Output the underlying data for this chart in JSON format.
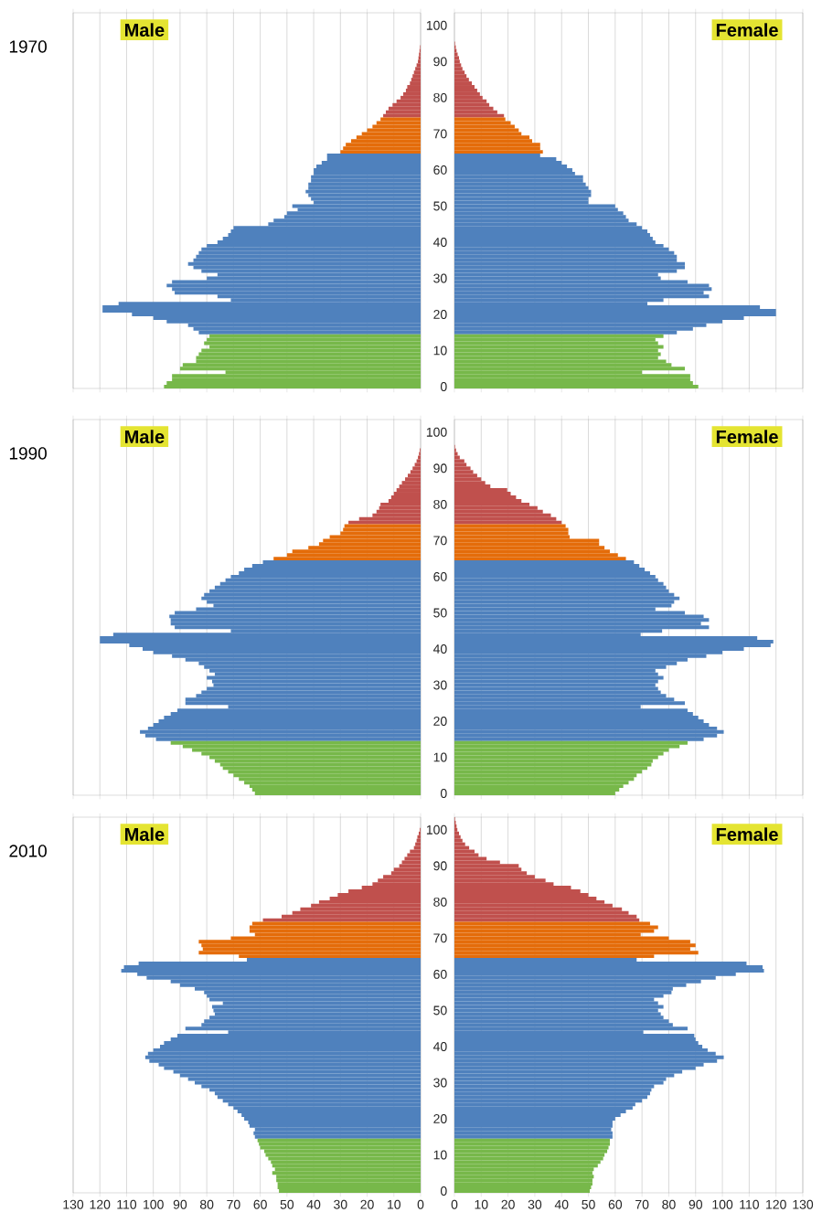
{
  "chart_data": [
    {
      "type": "bar",
      "orientation": "horizontal",
      "title": "Male",
      "ylabel": "1970",
      "grid": "x",
      "tick_labels": false,
      "xlim": [
        130,
        0
      ],
      "xticks": [
        130,
        120,
        110,
        100,
        90,
        80,
        70,
        60,
        50,
        40,
        30,
        20,
        10,
        0
      ],
      "categories": [
        null,
        null,
        null,
        "100",
        null,
        null,
        null,
        null,
        null,
        null,
        null,
        null,
        null,
        "90",
        null,
        null,
        null,
        null,
        null,
        null,
        null,
        null,
        null,
        "80",
        null,
        null,
        null,
        null,
        null,
        null,
        null,
        null,
        null,
        "70",
        null,
        null,
        null,
        null,
        null,
        null,
        null,
        null,
        null,
        "60",
        null,
        null,
        null,
        null,
        null,
        null,
        null,
        null,
        null,
        "50",
        null,
        null,
        null,
        null,
        null,
        null,
        null,
        null,
        null,
        "40",
        null,
        null,
        null,
        null,
        null,
        null,
        null,
        null,
        null,
        "30",
        null,
        null,
        null,
        null,
        null,
        null,
        null,
        null,
        null,
        "20",
        null,
        null,
        null,
        null,
        null,
        null,
        null,
        null,
        null,
        "10",
        null,
        null,
        null,
        null,
        null,
        null,
        null,
        null,
        null,
        "0"
      ],
      "values": [
        0,
        0,
        0,
        0,
        0,
        0,
        0,
        0,
        0,
        0.2,
        0.4,
        0.6,
        0.8,
        1,
        1.5,
        2,
        2.5,
        3,
        3.5,
        4,
        5,
        5.5,
        6.5,
        7.5,
        9,
        10.5,
        12,
        13,
        14,
        15,
        16.5,
        18,
        20,
        22,
        24,
        26,
        28,
        29,
        30,
        35,
        35,
        37,
        39,
        40,
        40,
        41,
        41,
        42,
        42,
        43,
        42,
        41,
        40,
        48,
        46,
        50,
        51,
        55,
        57,
        70,
        71,
        72,
        74,
        76,
        80,
        82,
        83,
        84,
        85,
        87,
        85,
        82,
        76,
        80,
        93,
        95,
        93,
        92,
        76,
        71,
        113,
        119,
        119,
        108,
        100,
        95,
        87,
        85,
        83,
        79,
        80,
        81,
        79,
        82,
        83,
        84,
        84,
        89,
        90,
        73,
        93,
        93,
        95,
        96
      ],
      "colors": [
        "#c0504d",
        "#c0504d",
        "#c0504d",
        "#c0504d",
        "#c0504d",
        "#c0504d",
        "#c0504d",
        "#c0504d",
        "#c0504d",
        "#c0504d",
        "#c0504d",
        "#c0504d",
        "#c0504d",
        "#c0504d",
        "#c0504d",
        "#c0504d",
        "#c0504d",
        "#c0504d",
        "#c0504d",
        "#c0504d",
        "#c0504d",
        "#c0504d",
        "#c0504d",
        "#c0504d",
        "#c0504d",
        "#c0504d",
        "#c0504d",
        "#c0504d",
        "#c0504d",
        "#e46c0a",
        "#e46c0a",
        "#e46c0a",
        "#e46c0a",
        "#e46c0a",
        "#e46c0a",
        "#e46c0a",
        "#e46c0a",
        "#e46c0a",
        "#e46c0a",
        "#4f81bd",
        "#4f81bd",
        "#4f81bd",
        "#4f81bd",
        "#4f81bd",
        "#4f81bd",
        "#4f81bd",
        "#4f81bd",
        "#4f81bd",
        "#4f81bd",
        "#4f81bd",
        "#4f81bd",
        "#4f81bd",
        "#4f81bd",
        "#4f81bd",
        "#4f81bd",
        "#4f81bd",
        "#4f81bd",
        "#4f81bd",
        "#4f81bd",
        "#4f81bd",
        "#4f81bd",
        "#4f81bd",
        "#4f81bd",
        "#4f81bd",
        "#4f81bd",
        "#4f81bd",
        "#4f81bd",
        "#4f81bd",
        "#4f81bd",
        "#4f81bd",
        "#4f81bd",
        "#4f81bd",
        "#4f81bd",
        "#4f81bd",
        "#4f81bd",
        "#4f81bd",
        "#4f81bd",
        "#4f81bd",
        "#4f81bd",
        "#4f81bd",
        "#4f81bd",
        "#4f81bd",
        "#4f81bd",
        "#4f81bd",
        "#4f81bd",
        "#4f81bd",
        "#4f81bd",
        "#4f81bd",
        "#4f81bd",
        "#77b84a",
        "#77b84a",
        "#77b84a",
        "#77b84a",
        "#77b84a",
        "#77b84a",
        "#77b84a",
        "#77b84a",
        "#77b84a",
        "#77b84a",
        "#77b84a",
        "#77b84a",
        "#77b84a",
        "#77b84a",
        "#77b84a"
      ]
    },
    {
      "type": "bar",
      "orientation": "horizontal",
      "title": "Female",
      "grid": "x",
      "tick_labels": "y",
      "xlim": [
        0,
        130
      ],
      "xticks": [
        0,
        10,
        20,
        30,
        40,
        50,
        60,
        70,
        80,
        90,
        100,
        110,
        120,
        130
      ],
      "categories": [
        null,
        null,
        null,
        "100",
        null,
        null,
        null,
        null,
        null,
        null,
        null,
        null,
        null,
        "90",
        null,
        null,
        null,
        null,
        null,
        null,
        null,
        null,
        null,
        "80",
        null,
        null,
        null,
        null,
        null,
        null,
        null,
        null,
        null,
        "70",
        null,
        null,
        null,
        null,
        null,
        null,
        null,
        null,
        null,
        "60",
        null,
        null,
        null,
        null,
        null,
        null,
        null,
        null,
        null,
        "50",
        null,
        null,
        null,
        null,
        null,
        null,
        null,
        null,
        null,
        "40",
        null,
        null,
        null,
        null,
        null,
        null,
        null,
        null,
        null,
        "30",
        null,
        null,
        null,
        null,
        null,
        null,
        null,
        null,
        null,
        "20",
        null,
        null,
        null,
        null,
        null,
        null,
        null,
        null,
        null,
        "10",
        null,
        null,
        null,
        null,
        null,
        null,
        null,
        null,
        null,
        "0"
      ],
      "values": [
        0,
        0,
        0,
        0,
        0,
        0,
        0,
        0,
        0.2,
        0.5,
        0.8,
        1.2,
        1.7,
        2,
        2.5,
        3,
        3.8,
        4.5,
        5.4,
        6.5,
        7.5,
        8.5,
        9.5,
        10.5,
        12,
        13,
        14.5,
        16,
        18.5,
        19,
        21,
        22.5,
        24,
        25,
        28,
        29,
        32,
        32,
        33,
        32,
        38,
        40,
        42,
        44,
        45,
        48,
        48,
        49,
        50,
        51,
        51,
        50,
        50,
        60,
        61,
        63,
        64,
        65,
        68,
        70,
        72,
        73,
        74,
        75,
        78,
        80,
        82,
        83,
        83,
        86,
        86,
        83,
        76,
        77,
        87,
        95,
        96,
        93,
        95,
        78,
        72,
        114,
        120,
        120,
        108,
        100,
        94,
        89,
        83,
        78,
        75,
        76,
        78,
        76,
        77,
        76,
        79,
        81,
        86,
        70,
        88,
        88,
        89,
        91
      ],
      "colors": [
        "#c0504d",
        "#c0504d",
        "#c0504d",
        "#c0504d",
        "#c0504d",
        "#c0504d",
        "#c0504d",
        "#c0504d",
        "#c0504d",
        "#c0504d",
        "#c0504d",
        "#c0504d",
        "#c0504d",
        "#c0504d",
        "#c0504d",
        "#c0504d",
        "#c0504d",
        "#c0504d",
        "#c0504d",
        "#c0504d",
        "#c0504d",
        "#c0504d",
        "#c0504d",
        "#c0504d",
        "#c0504d",
        "#c0504d",
        "#c0504d",
        "#c0504d",
        "#c0504d",
        "#e46c0a",
        "#e46c0a",
        "#e46c0a",
        "#e46c0a",
        "#e46c0a",
        "#e46c0a",
        "#e46c0a",
        "#e46c0a",
        "#e46c0a",
        "#e46c0a",
        "#4f81bd",
        "#4f81bd",
        "#4f81bd",
        "#4f81bd",
        "#4f81bd",
        "#4f81bd",
        "#4f81bd",
        "#4f81bd",
        "#4f81bd",
        "#4f81bd",
        "#4f81bd",
        "#4f81bd",
        "#4f81bd",
        "#4f81bd",
        "#4f81bd",
        "#4f81bd",
        "#4f81bd",
        "#4f81bd",
        "#4f81bd",
        "#4f81bd",
        "#4f81bd",
        "#4f81bd",
        "#4f81bd",
        "#4f81bd",
        "#4f81bd",
        "#4f81bd",
        "#4f81bd",
        "#4f81bd",
        "#4f81bd",
        "#4f81bd",
        "#4f81bd",
        "#4f81bd",
        "#4f81bd",
        "#4f81bd",
        "#4f81bd",
        "#4f81bd",
        "#4f81bd",
        "#4f81bd",
        "#4f81bd",
        "#4f81bd",
        "#4f81bd",
        "#4f81bd",
        "#4f81bd",
        "#4f81bd",
        "#4f81bd",
        "#4f81bd",
        "#4f81bd",
        "#4f81bd",
        "#4f81bd",
        "#4f81bd",
        "#77b84a",
        "#77b84a",
        "#77b84a",
        "#77b84a",
        "#77b84a",
        "#77b84a",
        "#77b84a",
        "#77b84a",
        "#77b84a",
        "#77b84a",
        "#77b84a",
        "#77b84a",
        "#77b84a",
        "#77b84a",
        "#77b84a"
      ]
    },
    {
      "type": "bar",
      "orientation": "horizontal",
      "title": "Male",
      "ylabel": "1990",
      "grid": "x",
      "tick_labels": false,
      "xlim": [
        130,
        0
      ],
      "xticks": [
        130,
        120,
        110,
        100,
        90,
        80,
        70,
        60,
        50,
        40,
        30,
        20,
        10,
        0
      ],
      "categories": [
        null,
        null,
        null,
        "100",
        null,
        null,
        null,
        null,
        null,
        null,
        null,
        null,
        null,
        "90",
        null,
        null,
        null,
        null,
        null,
        null,
        null,
        null,
        null,
        "80",
        null,
        null,
        null,
        null,
        null,
        null,
        null,
        null,
        null,
        "70",
        null,
        null,
        null,
        null,
        null,
        null,
        null,
        null,
        null,
        "60",
        null,
        null,
        null,
        null,
        null,
        null,
        null,
        null,
        null,
        "50",
        null,
        null,
        null,
        null,
        null,
        null,
        null,
        null,
        null,
        "40",
        null,
        null,
        null,
        null,
        null,
        null,
        null,
        null,
        null,
        "30",
        null,
        null,
        null,
        null,
        null,
        null,
        null,
        null,
        null,
        "20",
        null,
        null,
        null,
        null,
        null,
        null,
        null,
        null,
        null,
        "10",
        null,
        null,
        null,
        null,
        null,
        null,
        null,
        null,
        null,
        "0"
      ],
      "values": [
        0,
        0,
        0,
        0,
        0,
        0,
        0,
        0,
        0.3,
        0.6,
        1,
        1.5,
        2.2,
        3,
        3.8,
        4.8,
        5.8,
        7,
        8,
        9,
        10,
        11,
        12,
        15,
        15.5,
        16.5,
        18,
        23,
        27,
        28.5,
        29,
        30,
        34,
        36.5,
        38,
        42,
        48,
        50,
        55,
        59,
        63,
        66,
        68,
        71,
        73,
        75,
        77,
        79,
        81,
        82,
        80,
        77.5,
        84,
        92,
        94,
        93.5,
        93.5,
        92,
        71,
        115,
        120,
        120,
        109,
        104,
        100,
        93,
        88,
        83,
        81,
        79,
        77,
        80,
        78,
        77.5,
        80,
        82,
        84,
        88,
        88,
        72,
        91,
        93.5,
        96,
        98,
        100,
        102,
        105,
        103,
        99,
        93.5,
        89,
        85.5,
        82,
        79,
        77,
        75,
        74,
        72,
        70,
        68,
        66,
        64,
        63,
        62
      ],
      "colors": [
        "#c0504d",
        "#c0504d",
        "#c0504d",
        "#c0504d",
        "#c0504d",
        "#c0504d",
        "#c0504d",
        "#c0504d",
        "#c0504d",
        "#c0504d",
        "#c0504d",
        "#c0504d",
        "#c0504d",
        "#c0504d",
        "#c0504d",
        "#c0504d",
        "#c0504d",
        "#c0504d",
        "#c0504d",
        "#c0504d",
        "#c0504d",
        "#c0504d",
        "#c0504d",
        "#c0504d",
        "#c0504d",
        "#c0504d",
        "#c0504d",
        "#c0504d",
        "#c0504d",
        "#e46c0a",
        "#e46c0a",
        "#e46c0a",
        "#e46c0a",
        "#e46c0a",
        "#e46c0a",
        "#e46c0a",
        "#e46c0a",
        "#e46c0a",
        "#e46c0a",
        "#4f81bd",
        "#4f81bd",
        "#4f81bd",
        "#4f81bd",
        "#4f81bd",
        "#4f81bd",
        "#4f81bd",
        "#4f81bd",
        "#4f81bd",
        "#4f81bd",
        "#4f81bd",
        "#4f81bd",
        "#4f81bd",
        "#4f81bd",
        "#4f81bd",
        "#4f81bd",
        "#4f81bd",
        "#4f81bd",
        "#4f81bd",
        "#4f81bd",
        "#4f81bd",
        "#4f81bd",
        "#4f81bd",
        "#4f81bd",
        "#4f81bd",
        "#4f81bd",
        "#4f81bd",
        "#4f81bd",
        "#4f81bd",
        "#4f81bd",
        "#4f81bd",
        "#4f81bd",
        "#4f81bd",
        "#4f81bd",
        "#4f81bd",
        "#4f81bd",
        "#4f81bd",
        "#4f81bd",
        "#4f81bd",
        "#4f81bd",
        "#4f81bd",
        "#4f81bd",
        "#4f81bd",
        "#4f81bd",
        "#4f81bd",
        "#4f81bd",
        "#4f81bd",
        "#4f81bd",
        "#4f81bd",
        "#4f81bd",
        "#77b84a",
        "#77b84a",
        "#77b84a",
        "#77b84a",
        "#77b84a",
        "#77b84a",
        "#77b84a",
        "#77b84a",
        "#77b84a",
        "#77b84a",
        "#77b84a",
        "#77b84a",
        "#77b84a",
        "#77b84a",
        "#77b84a"
      ]
    },
    {
      "type": "bar",
      "orientation": "horizontal",
      "title": "Female",
      "grid": "x",
      "tick_labels": "y",
      "xlim": [
        0,
        130
      ],
      "xticks": [
        0,
        10,
        20,
        30,
        40,
        50,
        60,
        70,
        80,
        90,
        100,
        110,
        120,
        130
      ],
      "categories": [
        null,
        null,
        null,
        "100",
        null,
        null,
        null,
        null,
        null,
        null,
        null,
        null,
        null,
        "90",
        null,
        null,
        null,
        null,
        null,
        null,
        null,
        null,
        null,
        "80",
        null,
        null,
        null,
        null,
        null,
        null,
        null,
        null,
        null,
        "70",
        null,
        null,
        null,
        null,
        null,
        null,
        null,
        null,
        null,
        "60",
        null,
        null,
        null,
        null,
        null,
        null,
        null,
        null,
        null,
        "50",
        null,
        null,
        null,
        null,
        null,
        null,
        null,
        null,
        null,
        "40",
        null,
        null,
        null,
        null,
        null,
        null,
        null,
        null,
        null,
        "30",
        null,
        null,
        null,
        null,
        null,
        null,
        null,
        null,
        null,
        "20",
        null,
        null,
        null,
        null,
        null,
        null,
        null,
        null,
        null,
        "10",
        null,
        null,
        null,
        null,
        null,
        null,
        null,
        null,
        null,
        "0"
      ],
      "values": [
        0,
        0,
        0,
        0,
        0,
        0,
        0,
        0.2,
        0.6,
        1.2,
        2,
        3.7,
        4.5,
        6,
        7,
        8.5,
        10,
        11.5,
        13.4,
        19.7,
        21,
        23,
        25,
        28,
        31,
        33,
        36,
        38,
        40,
        41.5,
        42.5,
        42.5,
        43,
        54,
        54,
        56,
        58,
        61,
        64,
        67,
        69,
        71,
        73,
        75,
        76,
        78,
        79,
        80,
        82,
        84,
        82,
        81,
        75,
        86,
        93,
        95,
        92,
        95,
        77.5,
        69.5,
        113,
        119,
        118,
        108,
        100,
        94,
        87,
        83,
        79,
        75,
        76,
        78,
        76,
        75,
        76,
        77,
        79,
        82,
        86,
        69.5,
        87,
        89,
        91,
        93,
        95,
        98,
        100.5,
        98,
        93,
        87,
        84,
        80,
        78,
        76,
        74,
        73.5,
        72,
        70,
        68,
        67,
        65,
        63,
        61.5,
        60
      ],
      "colors": [
        "#c0504d",
        "#c0504d",
        "#c0504d",
        "#c0504d",
        "#c0504d",
        "#c0504d",
        "#c0504d",
        "#c0504d",
        "#c0504d",
        "#c0504d",
        "#c0504d",
        "#c0504d",
        "#c0504d",
        "#c0504d",
        "#c0504d",
        "#c0504d",
        "#c0504d",
        "#c0504d",
        "#c0504d",
        "#c0504d",
        "#c0504d",
        "#c0504d",
        "#c0504d",
        "#c0504d",
        "#c0504d",
        "#c0504d",
        "#c0504d",
        "#c0504d",
        "#c0504d",
        "#e46c0a",
        "#e46c0a",
        "#e46c0a",
        "#e46c0a",
        "#e46c0a",
        "#e46c0a",
        "#e46c0a",
        "#e46c0a",
        "#e46c0a",
        "#e46c0a",
        "#4f81bd",
        "#4f81bd",
        "#4f81bd",
        "#4f81bd",
        "#4f81bd",
        "#4f81bd",
        "#4f81bd",
        "#4f81bd",
        "#4f81bd",
        "#4f81bd",
        "#4f81bd",
        "#4f81bd",
        "#4f81bd",
        "#4f81bd",
        "#4f81bd",
        "#4f81bd",
        "#4f81bd",
        "#4f81bd",
        "#4f81bd",
        "#4f81bd",
        "#4f81bd",
        "#4f81bd",
        "#4f81bd",
        "#4f81bd",
        "#4f81bd",
        "#4f81bd",
        "#4f81bd",
        "#4f81bd",
        "#4f81bd",
        "#4f81bd",
        "#4f81bd",
        "#4f81bd",
        "#4f81bd",
        "#4f81bd",
        "#4f81bd",
        "#4f81bd",
        "#4f81bd",
        "#4f81bd",
        "#4f81bd",
        "#4f81bd",
        "#4f81bd",
        "#4f81bd",
        "#4f81bd",
        "#4f81bd",
        "#4f81bd",
        "#4f81bd",
        "#4f81bd",
        "#4f81bd",
        "#4f81bd",
        "#4f81bd",
        "#77b84a",
        "#77b84a",
        "#77b84a",
        "#77b84a",
        "#77b84a",
        "#77b84a",
        "#77b84a",
        "#77b84a",
        "#77b84a",
        "#77b84a",
        "#77b84a",
        "#77b84a",
        "#77b84a",
        "#77b84a",
        "#77b84a"
      ]
    },
    {
      "type": "bar",
      "orientation": "horizontal",
      "title": "Male",
      "ylabel": "2010",
      "grid": "x",
      "tick_labels": "x",
      "xlim": [
        130,
        0
      ],
      "xticks": [
        130,
        120,
        110,
        100,
        90,
        80,
        70,
        60,
        50,
        40,
        30,
        20,
        10,
        0
      ],
      "categories": [
        null,
        null,
        null,
        "100",
        null,
        null,
        null,
        null,
        null,
        null,
        null,
        null,
        null,
        "90",
        null,
        null,
        null,
        null,
        null,
        null,
        null,
        null,
        null,
        "80",
        null,
        null,
        null,
        null,
        null,
        null,
        null,
        null,
        null,
        "70",
        null,
        null,
        null,
        null,
        null,
        null,
        null,
        null,
        null,
        "60",
        null,
        null,
        null,
        null,
        null,
        null,
        null,
        null,
        null,
        "50",
        null,
        null,
        null,
        null,
        null,
        null,
        null,
        null,
        null,
        "40",
        null,
        null,
        null,
        null,
        null,
        null,
        null,
        null,
        null,
        "30",
        null,
        null,
        null,
        null,
        null,
        null,
        null,
        null,
        null,
        "20",
        null,
        null,
        null,
        null,
        null,
        null,
        null,
        null,
        null,
        "10",
        null,
        null,
        null,
        null,
        null,
        null,
        null,
        null,
        null,
        "0"
      ],
      "values": [
        0,
        0,
        0,
        0.3,
        0.7,
        1.2,
        1.5,
        2,
        2.5,
        4,
        5,
        6,
        7,
        8,
        10,
        11,
        14,
        16,
        18,
        22,
        27,
        31,
        34,
        38,
        41,
        45,
        48,
        52,
        59,
        63,
        64,
        64,
        62,
        71,
        83,
        82,
        81.5,
        83,
        68,
        65,
        105.5,
        111,
        112,
        106,
        102.5,
        93.5,
        90,
        84.5,
        81,
        80,
        79,
        74,
        78,
        77.5,
        77,
        79,
        81,
        82,
        88,
        72,
        91,
        93.5,
        96,
        97.5,
        100,
        102,
        103,
        101.5,
        98,
        96,
        92.5,
        90,
        87,
        84.5,
        82,
        79,
        77,
        76,
        74,
        72,
        70,
        68.5,
        67,
        66,
        64.5,
        64,
        62,
        62.5,
        62,
        61,
        60.5,
        60,
        58.5,
        58,
        57,
        56,
        55.5,
        54.5,
        55.5,
        54,
        54,
        53.5,
        53.5,
        53
      ],
      "colors": [
        "#c0504d",
        "#c0504d",
        "#c0504d",
        "#c0504d",
        "#c0504d",
        "#c0504d",
        "#c0504d",
        "#c0504d",
        "#c0504d",
        "#c0504d",
        "#c0504d",
        "#c0504d",
        "#c0504d",
        "#c0504d",
        "#c0504d",
        "#c0504d",
        "#c0504d",
        "#c0504d",
        "#c0504d",
        "#c0504d",
        "#c0504d",
        "#c0504d",
        "#c0504d",
        "#c0504d",
        "#c0504d",
        "#c0504d",
        "#c0504d",
        "#c0504d",
        "#c0504d",
        "#e46c0a",
        "#e46c0a",
        "#e46c0a",
        "#e46c0a",
        "#e46c0a",
        "#e46c0a",
        "#e46c0a",
        "#e46c0a",
        "#e46c0a",
        "#e46c0a",
        "#4f81bd",
        "#4f81bd",
        "#4f81bd",
        "#4f81bd",
        "#4f81bd",
        "#4f81bd",
        "#4f81bd",
        "#4f81bd",
        "#4f81bd",
        "#4f81bd",
        "#4f81bd",
        "#4f81bd",
        "#4f81bd",
        "#4f81bd",
        "#4f81bd",
        "#4f81bd",
        "#4f81bd",
        "#4f81bd",
        "#4f81bd",
        "#4f81bd",
        "#4f81bd",
        "#4f81bd",
        "#4f81bd",
        "#4f81bd",
        "#4f81bd",
        "#4f81bd",
        "#4f81bd",
        "#4f81bd",
        "#4f81bd",
        "#4f81bd",
        "#4f81bd",
        "#4f81bd",
        "#4f81bd",
        "#4f81bd",
        "#4f81bd",
        "#4f81bd",
        "#4f81bd",
        "#4f81bd",
        "#4f81bd",
        "#4f81bd",
        "#4f81bd",
        "#4f81bd",
        "#4f81bd",
        "#4f81bd",
        "#4f81bd",
        "#4f81bd",
        "#4f81bd",
        "#4f81bd",
        "#4f81bd",
        "#4f81bd",
        "#77b84a",
        "#77b84a",
        "#77b84a",
        "#77b84a",
        "#77b84a",
        "#77b84a",
        "#77b84a",
        "#77b84a",
        "#77b84a",
        "#77b84a",
        "#77b84a",
        "#77b84a",
        "#77b84a",
        "#77b84a",
        "#77b84a"
      ]
    },
    {
      "type": "bar",
      "orientation": "horizontal",
      "title": "Female",
      "grid": "x",
      "xlim": [
        0,
        130
      ],
      "xticks": [
        0,
        10,
        20,
        30,
        40,
        50,
        60,
        70,
        80,
        90,
        100,
        110,
        120,
        130
      ],
      "categories": [
        null,
        null,
        null,
        "100",
        null,
        null,
        null,
        null,
        null,
        null,
        null,
        null,
        null,
        "90",
        null,
        null,
        null,
        null,
        null,
        null,
        null,
        null,
        null,
        "80",
        null,
        null,
        null,
        null,
        null,
        null,
        null,
        null,
        null,
        "70",
        null,
        null,
        null,
        null,
        null,
        null,
        null,
        null,
        null,
        "60",
        null,
        null,
        null,
        null,
        null,
        null,
        null,
        null,
        null,
        "50",
        null,
        null,
        null,
        null,
        null,
        null,
        null,
        null,
        null,
        "40",
        null,
        null,
        null,
        null,
        null,
        null,
        null,
        null,
        null,
        "30",
        null,
        null,
        null,
        null,
        null,
        null,
        null,
        null,
        null,
        "20",
        null,
        null,
        null,
        null,
        null,
        null,
        null,
        null,
        null,
        "10",
        null,
        null,
        null,
        null,
        null,
        null,
        null,
        null,
        null,
        "0"
      ],
      "values": [
        0.2,
        0.5,
        0.8,
        1.1,
        1.7,
        2.3,
        3,
        4,
        5.5,
        7.5,
        9,
        12,
        17,
        24,
        25,
        27,
        30,
        34,
        37,
        43.5,
        47,
        50,
        53,
        56,
        59,
        62.5,
        65,
        68,
        69,
        73,
        76,
        74.5,
        69.5,
        80,
        88,
        90,
        88,
        91,
        74.5,
        68,
        109,
        115,
        115.5,
        105,
        97.5,
        92,
        86.5,
        81.5,
        81,
        78,
        74.5,
        76,
        78,
        76,
        77,
        78,
        80,
        81.5,
        87,
        70.5,
        89.5,
        90,
        91,
        92.5,
        94.5,
        97.5,
        100.5,
        98,
        93,
        90,
        85,
        82,
        79,
        78,
        74.5,
        73.5,
        73,
        72,
        70,
        67.5,
        66.5,
        64,
        62,
        60,
        59,
        59,
        58.5,
        59,
        59,
        58,
        58,
        57.5,
        57,
        56,
        55.5,
        54.5,
        53.5,
        52,
        51.5,
        52,
        51.5,
        51.5,
        51,
        50.5
      ],
      "colors": [
        "#c0504d",
        "#c0504d",
        "#c0504d",
        "#c0504d",
        "#c0504d",
        "#c0504d",
        "#c0504d",
        "#c0504d",
        "#c0504d",
        "#c0504d",
        "#c0504d",
        "#c0504d",
        "#c0504d",
        "#c0504d",
        "#c0504d",
        "#c0504d",
        "#c0504d",
        "#c0504d",
        "#c0504d",
        "#c0504d",
        "#c0504d",
        "#c0504d",
        "#c0504d",
        "#c0504d",
        "#c0504d",
        "#c0504d",
        "#c0504d",
        "#c0504d",
        "#c0504d",
        "#e46c0a",
        "#e46c0a",
        "#e46c0a",
        "#e46c0a",
        "#e46c0a",
        "#e46c0a",
        "#e46c0a",
        "#e46c0a",
        "#e46c0a",
        "#e46c0a",
        "#4f81bd",
        "#4f81bd",
        "#4f81bd",
        "#4f81bd",
        "#4f81bd",
        "#4f81bd",
        "#4f81bd",
        "#4f81bd",
        "#4f81bd",
        "#4f81bd",
        "#4f81bd",
        "#4f81bd",
        "#4f81bd",
        "#4f81bd",
        "#4f81bd",
        "#4f81bd",
        "#4f81bd",
        "#4f81bd",
        "#4f81bd",
        "#4f81bd",
        "#4f81bd",
        "#4f81bd",
        "#4f81bd",
        "#4f81bd",
        "#4f81bd",
        "#4f81bd",
        "#4f81bd",
        "#4f81bd",
        "#4f81bd",
        "#4f81bd",
        "#4f81bd",
        "#4f81bd",
        "#4f81bd",
        "#4f81bd",
        "#4f81bd",
        "#4f81bd",
        "#4f81bd",
        "#4f81bd",
        "#4f81bd",
        "#4f81bd",
        "#4f81bd",
        "#4f81bd",
        "#4f81bd",
        "#4f81bd",
        "#4f81bd",
        "#4f81bd",
        "#4f81bd",
        "#4f81bd",
        "#4f81bd",
        "#4f81bd",
        "#77b84a",
        "#77b84a",
        "#77b84a",
        "#77b84a",
        "#77b84a",
        "#77b84a",
        "#77b84a",
        "#77b84a",
        "#77b84a",
        "#77b84a",
        "#77b84a",
        "#77b84a",
        "#77b84a",
        "#77b84a",
        "#77b84a"
      ]
    }
  ]
}
